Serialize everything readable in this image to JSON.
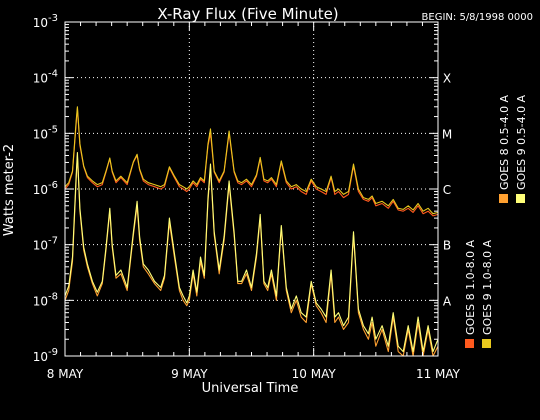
{
  "colors": {
    "background": "#000000",
    "axes": "#ffffff",
    "grid": "#ffffff",
    "goes8_long": "#ff5a1e",
    "goes8_short": "#ffa030",
    "goes9_long": "#e8c81e",
    "goes9_short": "#ffff78"
  },
  "chart_data": {
    "type": "line",
    "title": "X-Ray Flux (Five Minute)",
    "begin_label": "BEGIN: 5/8/1998 0000",
    "xlabel": "Universal Time",
    "ylabel": "Watts meter-2",
    "x_unit": "days since 1998-05-08 00:00 UT",
    "xlim": [
      0,
      3
    ],
    "x_ticks": [
      {
        "value": 0,
        "label": "8 MAY"
      },
      {
        "value": 1,
        "label": "9 MAY"
      },
      {
        "value": 2,
        "label": "10 MAY"
      },
      {
        "value": 3,
        "label": "11 MAY"
      }
    ],
    "y_scale": "log",
    "ylim": [
      1e-09,
      0.001
    ],
    "y_ticks": [
      {
        "value": 1e-09,
        "base": "10",
        "exp": "-9"
      },
      {
        "value": 1e-08,
        "base": "10",
        "exp": "-8"
      },
      {
        "value": 1e-07,
        "base": "10",
        "exp": "-7"
      },
      {
        "value": 1e-06,
        "base": "10",
        "exp": "-6"
      },
      {
        "value": 1e-05,
        "base": "10",
        "exp": "-5"
      },
      {
        "value": 0.0001,
        "base": "10",
        "exp": "-4"
      },
      {
        "value": 0.001,
        "base": "10",
        "exp": "-3"
      }
    ],
    "flare_classes": [
      {
        "label": "X",
        "value": 0.0001
      },
      {
        "label": "M",
        "value": 1e-05
      },
      {
        "label": "C",
        "value": 1e-06
      },
      {
        "label": "B",
        "value": 1e-07
      },
      {
        "label": "A",
        "value": 1e-08
      }
    ],
    "grid": "dotted at decades 1e-8..1e-4 and at each day",
    "legend_position": "right (vertical)",
    "legend": [
      {
        "label": "GOES 8 1.0-8.0 A",
        "color_key": "goes8_long"
      },
      {
        "label": "GOES 9 1.0-8.0 A",
        "color_key": "goes9_long"
      },
      {
        "label": "GOES 8 0.5-4.0 A",
        "color_key": "goes8_short"
      },
      {
        "label": "GOES 9 0.5-4.0 A",
        "color_key": "goes9_short"
      }
    ],
    "series": [
      {
        "name": "GOES 8 1.0-8.0 A",
        "color_key": "goes8_long",
        "x": [
          0.0,
          0.03,
          0.06,
          0.09,
          0.1,
          0.12,
          0.15,
          0.18,
          0.22,
          0.26,
          0.3,
          0.33,
          0.36,
          0.38,
          0.41,
          0.45,
          0.5,
          0.55,
          0.58,
          0.6,
          0.63,
          0.67,
          0.72,
          0.77,
          0.8,
          0.84,
          0.88,
          0.92,
          0.95,
          0.98,
          1.0,
          1.03,
          1.06,
          1.09,
          1.12,
          1.15,
          1.17,
          1.2,
          1.24,
          1.28,
          1.32,
          1.36,
          1.39,
          1.42,
          1.46,
          1.5,
          1.54,
          1.57,
          1.6,
          1.63,
          1.66,
          1.7,
          1.74,
          1.78,
          1.82,
          1.86,
          1.9,
          1.94,
          1.98,
          2.02,
          2.06,
          2.1,
          2.14,
          2.17,
          2.2,
          2.24,
          2.28,
          2.32,
          2.36,
          2.4,
          2.44,
          2.47,
          2.5,
          2.55,
          2.6,
          2.64,
          2.68,
          2.72,
          2.76,
          2.8,
          2.84,
          2.88,
          2.92,
          2.96,
          3.0
        ],
        "values": [
          1e-06,
          1.2e-06,
          2e-06,
          1.5e-05,
          2.8e-05,
          6e-06,
          2.5e-06,
          1.6e-06,
          1.3e-06,
          1.1e-06,
          1.2e-06,
          2e-06,
          3.5e-06,
          2e-06,
          1.3e-06,
          1.6e-06,
          1.2e-06,
          3e-06,
          4e-06,
          2.2e-06,
          1.4e-06,
          1.2e-06,
          1.1e-06,
          1e-06,
          1.1e-06,
          2.4e-06,
          1.6e-06,
          1.1e-06,
          1e-06,
          9e-07,
          1e-06,
          1.3e-06,
          1.1e-06,
          1.5e-06,
          1.3e-06,
          6e-06,
          1e-05,
          2e-06,
          1.3e-06,
          2e-06,
          1e-05,
          2e-06,
          1.3e-06,
          1.2e-06,
          1.4e-06,
          1.1e-06,
          1.7e-06,
          3.5e-06,
          1.4e-06,
          1.3e-06,
          1.5e-06,
          1.1e-06,
          3e-06,
          1.3e-06,
          1e-06,
          1.1e-06,
          9e-07,
          8e-07,
          1.4e-06,
          1e-06,
          9e-07,
          8e-07,
          1.6e-06,
          8e-07,
          9e-07,
          7e-07,
          8e-07,
          2.6e-06,
          9e-07,
          6.5e-07,
          6e-07,
          7e-07,
          5e-07,
          5.5e-07,
          4.5e-07,
          6e-07,
          4.2e-07,
          4e-07,
          4.5e-07,
          3.8e-07,
          5e-07,
          3.6e-07,
          4e-07,
          3.3e-07,
          3.5e-07
        ]
      },
      {
        "name": "GOES 9 1.0-8.0 A",
        "color_key": "goes9_long",
        "x": [
          0.0,
          0.03,
          0.06,
          0.09,
          0.1,
          0.12,
          0.15,
          0.18,
          0.22,
          0.26,
          0.3,
          0.33,
          0.36,
          0.38,
          0.41,
          0.45,
          0.5,
          0.55,
          0.58,
          0.6,
          0.63,
          0.67,
          0.72,
          0.77,
          0.8,
          0.84,
          0.88,
          0.92,
          0.95,
          0.98,
          1.0,
          1.03,
          1.06,
          1.09,
          1.12,
          1.15,
          1.17,
          1.2,
          1.24,
          1.28,
          1.32,
          1.36,
          1.39,
          1.42,
          1.46,
          1.5,
          1.54,
          1.57,
          1.6,
          1.63,
          1.66,
          1.7,
          1.74,
          1.78,
          1.82,
          1.86,
          1.9,
          1.94,
          1.98,
          2.02,
          2.06,
          2.1,
          2.14,
          2.17,
          2.2,
          2.24,
          2.28,
          2.32,
          2.36,
          2.4,
          2.44,
          2.47,
          2.5,
          2.55,
          2.6,
          2.64,
          2.68,
          2.72,
          2.76,
          2.8,
          2.84,
          2.88,
          2.92,
          2.96,
          3.0
        ],
        "values": [
          1.1e-06,
          1.3e-06,
          2.1e-06,
          1.7e-05,
          3e-05,
          6.5e-06,
          2.6e-06,
          1.7e-06,
          1.4e-06,
          1.2e-06,
          1.3e-06,
          2.1e-06,
          3.6e-06,
          2.1e-06,
          1.4e-06,
          1.7e-06,
          1.3e-06,
          3.1e-06,
          4.2e-06,
          2.3e-06,
          1.5e-06,
          1.3e-06,
          1.2e-06,
          1.1e-06,
          1.2e-06,
          2.5e-06,
          1.7e-06,
          1.2e-06,
          1.1e-06,
          1e-06,
          1.1e-06,
          1.4e-06,
          1.2e-06,
          1.6e-06,
          1.4e-06,
          6.5e-06,
          1.2e-05,
          2.1e-06,
          1.4e-06,
          2.1e-06,
          1.1e-05,
          2.1e-06,
          1.4e-06,
          1.3e-06,
          1.5e-06,
          1.2e-06,
          1.8e-06,
          3.7e-06,
          1.5e-06,
          1.4e-06,
          1.6e-06,
          1.2e-06,
          3.2e-06,
          1.4e-06,
          1.1e-06,
          1.2e-06,
          1e-06,
          9e-07,
          1.5e-06,
          1.1e-06,
          1e-06,
          9e-07,
          1.7e-06,
          9e-07,
          1e-06,
          8e-07,
          9e-07,
          2.8e-06,
          1e-06,
          7e-07,
          6.5e-07,
          7.5e-07,
          5.5e-07,
          6e-07,
          5e-07,
          6.5e-07,
          4.5e-07,
          4.3e-07,
          5e-07,
          4.2e-07,
          5.5e-07,
          4e-07,
          4.5e-07,
          3.6e-07,
          3.8e-07
        ]
      },
      {
        "name": "GOES 8 0.5-4.0 A",
        "color_key": "goes8_short",
        "x": [
          0.0,
          0.03,
          0.06,
          0.09,
          0.1,
          0.12,
          0.15,
          0.18,
          0.22,
          0.26,
          0.3,
          0.33,
          0.36,
          0.38,
          0.41,
          0.45,
          0.5,
          0.55,
          0.58,
          0.6,
          0.63,
          0.67,
          0.72,
          0.77,
          0.8,
          0.84,
          0.88,
          0.92,
          0.95,
          0.98,
          1.0,
          1.03,
          1.06,
          1.09,
          1.12,
          1.15,
          1.17,
          1.2,
          1.24,
          1.28,
          1.32,
          1.36,
          1.39,
          1.42,
          1.46,
          1.5,
          1.54,
          1.57,
          1.6,
          1.63,
          1.66,
          1.7,
          1.74,
          1.78,
          1.82,
          1.86,
          1.9,
          1.94,
          1.98,
          2.02,
          2.06,
          2.1,
          2.14,
          2.17,
          2.2,
          2.24,
          2.28,
          2.32,
          2.36,
          2.4,
          2.44,
          2.47,
          2.5,
          2.55,
          2.6,
          2.64,
          2.68,
          2.72,
          2.76,
          2.8,
          2.84,
          2.88,
          2.92,
          2.96,
          3.0
        ],
        "values": [
          1e-08,
          1.5e-08,
          5e-08,
          1.5e-06,
          4e-06,
          4e-07,
          8e-08,
          4e-08,
          2e-08,
          1.2e-08,
          2e-08,
          8e-08,
          4e-07,
          9e-08,
          2.5e-08,
          3e-08,
          1.5e-08,
          1.5e-07,
          5e-07,
          1.2e-07,
          4e-08,
          3e-08,
          2e-08,
          1.5e-08,
          2.5e-08,
          2.5e-07,
          6e-08,
          1.5e-08,
          1e-08,
          8e-09,
          1e-08,
          3e-08,
          1.2e-08,
          5e-08,
          2.5e-08,
          6e-07,
          2.4e-06,
          1.5e-07,
          3e-08,
          1.2e-07,
          1.2e-06,
          1.5e-07,
          2e-08,
          2e-08,
          3e-08,
          1.5e-08,
          6e-08,
          3e-07,
          2e-08,
          1.5e-08,
          3e-08,
          1e-08,
          2e-07,
          1.5e-08,
          6e-09,
          1e-08,
          5e-09,
          4e-09,
          2e-08,
          8e-09,
          6e-09,
          4e-09,
          3e-08,
          4e-09,
          5e-09,
          3e-09,
          4e-09,
          1.5e-07,
          6e-09,
          3e-09,
          2e-09,
          4e-09,
          1.5e-09,
          3e-09,
          1.2e-09,
          5e-09,
          1.2e-09,
          1e-09,
          3e-09,
          1e-09,
          4e-09,
          1e-09,
          3e-09,
          1e-09,
          1.5e-09
        ]
      },
      {
        "name": "GOES 9 0.5-4.0 A",
        "color_key": "goes9_short",
        "x": [
          0.0,
          0.03,
          0.06,
          0.09,
          0.1,
          0.12,
          0.15,
          0.18,
          0.22,
          0.26,
          0.3,
          0.33,
          0.36,
          0.38,
          0.41,
          0.45,
          0.5,
          0.55,
          0.58,
          0.6,
          0.63,
          0.67,
          0.72,
          0.77,
          0.8,
          0.84,
          0.88,
          0.92,
          0.95,
          0.98,
          1.0,
          1.03,
          1.06,
          1.09,
          1.12,
          1.15,
          1.17,
          1.2,
          1.24,
          1.28,
          1.32,
          1.36,
          1.39,
          1.42,
          1.46,
          1.5,
          1.54,
          1.57,
          1.6,
          1.63,
          1.66,
          1.7,
          1.74,
          1.78,
          1.82,
          1.86,
          1.9,
          1.94,
          1.98,
          2.02,
          2.06,
          2.1,
          2.14,
          2.17,
          2.2,
          2.24,
          2.28,
          2.32,
          2.36,
          2.4,
          2.44,
          2.47,
          2.5,
          2.55,
          2.6,
          2.64,
          2.68,
          2.72,
          2.76,
          2.8,
          2.84,
          2.88,
          2.92,
          2.96,
          3.0
        ],
        "values": [
          1.2e-08,
          1.8e-08,
          6e-08,
          1.8e-06,
          4.5e-06,
          4.5e-07,
          9e-08,
          4.5e-08,
          2.2e-08,
          1.4e-08,
          2.2e-08,
          9e-08,
          4.5e-07,
          1e-07,
          2.8e-08,
          3.5e-08,
          1.7e-08,
          1.7e-07,
          6e-07,
          1.4e-07,
          4.5e-08,
          3.5e-08,
          2.2e-08,
          1.7e-08,
          2.8e-08,
          3e-07,
          7e-08,
          1.7e-08,
          1.2e-08,
          9e-09,
          1.2e-08,
          3.5e-08,
          1.4e-08,
          6e-08,
          2.8e-08,
          7e-07,
          2.8e-06,
          1.7e-07,
          3.5e-08,
          1.4e-07,
          1.4e-06,
          1.7e-07,
          2.2e-08,
          2.2e-08,
          3.5e-08,
          1.7e-08,
          7e-08,
          3.5e-07,
          2.2e-08,
          1.7e-08,
          3.5e-08,
          1.2e-08,
          2.2e-07,
          1.7e-08,
          7e-09,
          1.2e-08,
          6e-09,
          5e-09,
          2.2e-08,
          9e-09,
          7e-09,
          5e-09,
          3.5e-08,
          5e-09,
          6e-09,
          3.5e-09,
          5e-09,
          1.7e-07,
          7e-09,
          3.5e-09,
          2.5e-09,
          5e-09,
          2e-09,
          3.5e-09,
          1.5e-09,
          6e-09,
          1.5e-09,
          1.2e-09,
          3.5e-09,
          1.2e-09,
          5e-09,
          1.2e-09,
          3.5e-09,
          1.2e-09,
          2e-09
        ]
      }
    ]
  }
}
